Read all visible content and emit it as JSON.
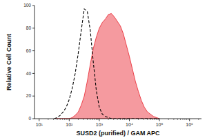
{
  "chart_data": {
    "type": "area",
    "x_label": "SUSD2 (purified) / GAM APC",
    "y_label": "Relative Cell Count",
    "log": "x",
    "grid": false,
    "xlim": [
      7,
      2500000
    ],
    "ylim": [
      0,
      100
    ],
    "xticks": [
      {
        "value": 10,
        "label": "10¹"
      },
      {
        "value": 100,
        "label": "10²"
      },
      {
        "value": 1000,
        "label": "10³"
      },
      {
        "value": 10000,
        "label": "10⁴"
      },
      {
        "value": 100000,
        "label": "10⁵"
      },
      {
        "value": 1000000,
        "label": "10⁶"
      }
    ],
    "yticks": [
      0,
      20,
      40,
      60,
      80,
      100
    ],
    "x": [
      32,
      40,
      50,
      63,
      79,
      100,
      126,
      158,
      200,
      251,
      316,
      398,
      501,
      631,
      794,
      1000,
      1259,
      1585,
      1995,
      2512,
      3162,
      3981,
      5012,
      6310,
      7943,
      10000,
      12589,
      15849,
      19953,
      25119,
      31623,
      39811,
      50119,
      63096,
      79433,
      100000
    ],
    "series": [
      {
        "type": "line",
        "color": "#000000",
        "line_style": "dashed",
        "values": [
          0,
          1,
          3,
          6,
          10,
          17,
          27,
          40,
          58,
          78,
          97,
          95,
          78,
          50,
          25,
          10,
          4,
          2,
          1,
          0,
          0,
          0,
          0,
          0,
          0,
          0,
          0,
          0,
          0,
          0,
          0,
          0,
          0,
          0,
          0,
          0
        ]
      },
      {
        "type": "area",
        "color": "#e8202a",
        "line_style": "solid",
        "values": [
          0,
          0,
          0,
          0,
          0,
          0,
          1,
          3,
          6,
          12,
          20,
          33,
          48,
          62,
          72,
          80,
          85,
          88,
          92,
          93,
          90,
          86,
          82,
          75,
          65,
          55,
          44,
          33,
          24,
          16,
          10,
          6,
          4,
          2,
          1,
          0
        ]
      }
    ]
  }
}
